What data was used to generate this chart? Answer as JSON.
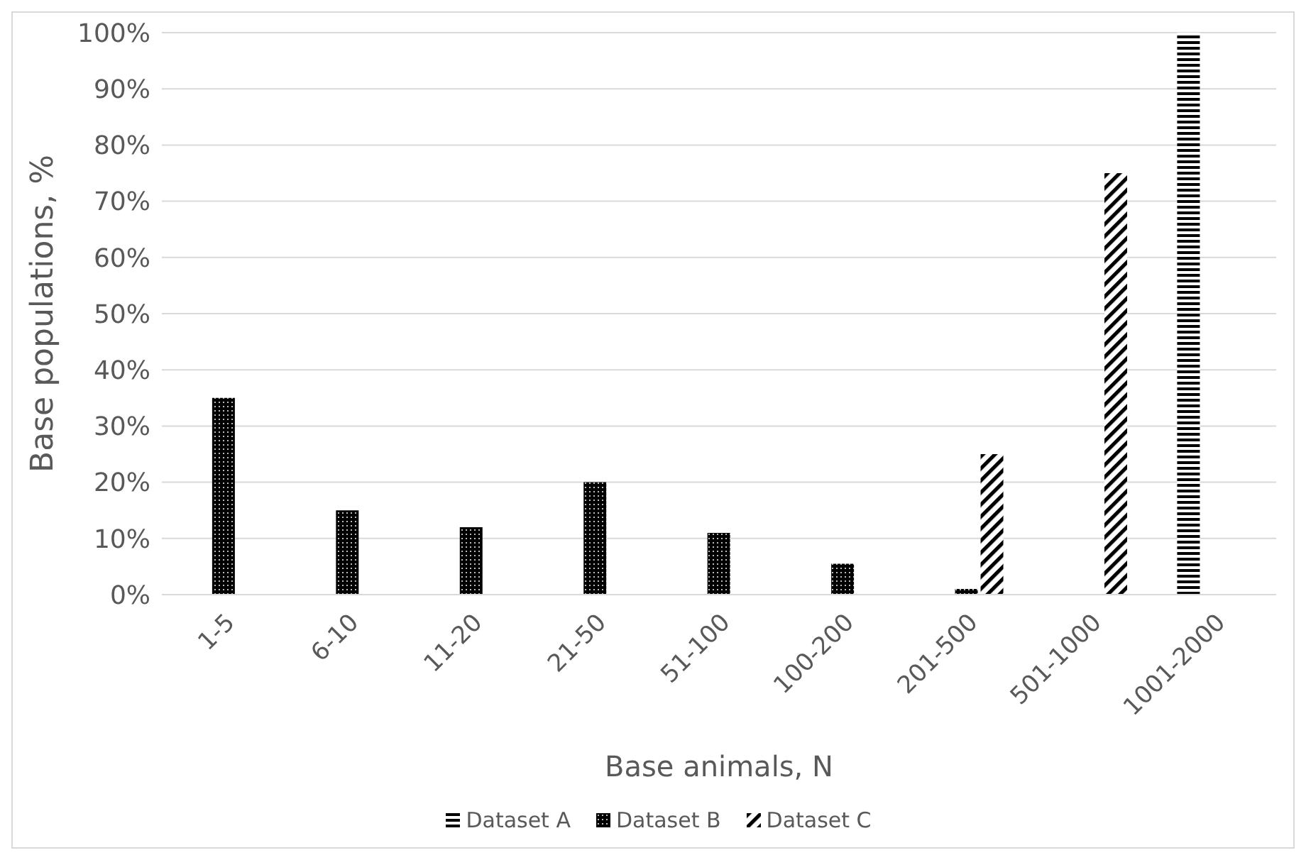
{
  "chart_data": {
    "type": "bar",
    "xlabel": "Base animals, N",
    "ylabel": "Base populations, %",
    "categories": [
      "1-5",
      "6-10",
      "11-20",
      "21-50",
      "51-100",
      "100-200",
      "201-500",
      "501-1000",
      "1001-2000"
    ],
    "series": [
      {
        "name": "Dataset A",
        "color": "#000000",
        "values": [
          null,
          null,
          null,
          null,
          null,
          null,
          null,
          null,
          100
        ]
      },
      {
        "name": "Dataset B",
        "color": "#000000",
        "values": [
          35,
          15,
          12,
          20,
          11,
          5.5,
          1,
          null,
          null
        ]
      },
      {
        "name": "Dataset C",
        "color": "#000000",
        "values": [
          null,
          null,
          null,
          null,
          null,
          null,
          25,
          75,
          null
        ]
      }
    ],
    "ylim": [
      0,
      100
    ],
    "yticks": [
      {
        "value": 0,
        "label": "0%"
      },
      {
        "value": 10,
        "label": "10%"
      },
      {
        "value": 20,
        "label": "20%"
      },
      {
        "value": 30,
        "label": "30%"
      },
      {
        "value": 40,
        "label": "40%"
      },
      {
        "value": 50,
        "label": "50%"
      },
      {
        "value": 60,
        "label": "60%"
      },
      {
        "value": 70,
        "label": "70%"
      },
      {
        "value": 80,
        "label": "80%"
      },
      {
        "value": 90,
        "label": "90%"
      },
      {
        "value": 100,
        "label": "100%"
      }
    ],
    "grid": "y",
    "legend": "bottom"
  }
}
